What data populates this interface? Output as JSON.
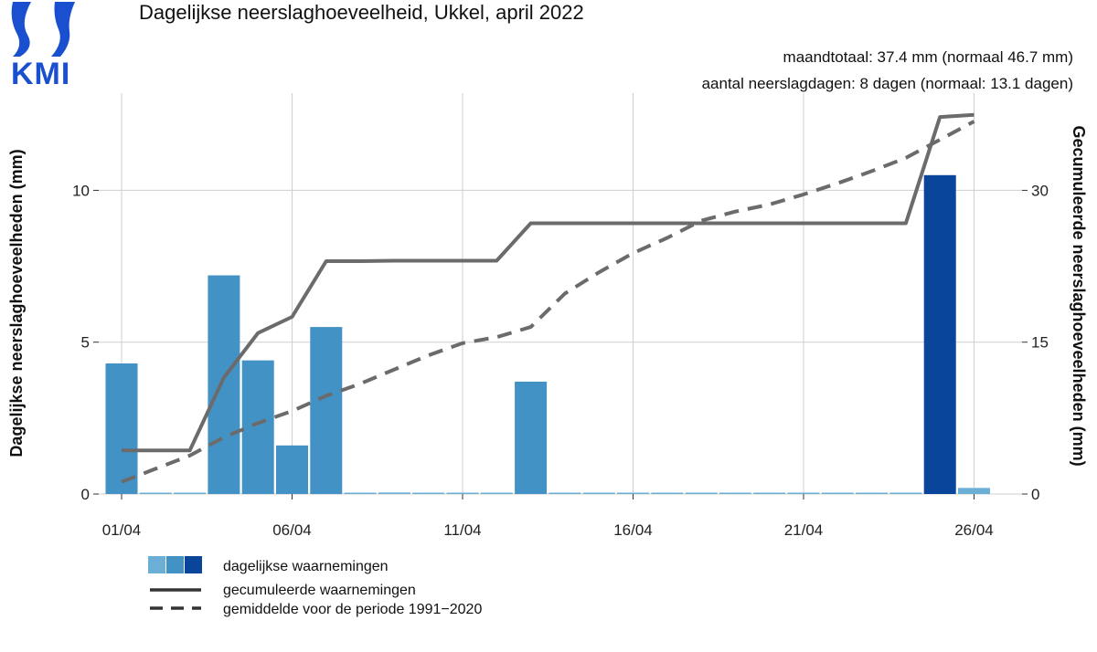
{
  "logo": {
    "text": "KMI",
    "color": "#1a4fd0"
  },
  "chart_data": {
    "type": "bar",
    "title": "Dagelijkse neerslaghoeveelheid, Ukkel, april 2022",
    "stats": [
      "maandtotaal: 37.4 mm (normaal 46.7 mm)",
      "aantal neerslagdagen: 8 dagen (normaal: 13.1 dagen)"
    ],
    "ylabel_left": "Dagelijkse neerslaghoeveelheden (mm)",
    "ylabel_right": "Gecumuleerde neerslaghoeveelheden (mm)",
    "ylim_left": [
      0,
      13.2
    ],
    "ylim_right": [
      0,
      39.6
    ],
    "yticks_left": [
      0,
      5,
      10
    ],
    "yticks_right": [
      0,
      15,
      30
    ],
    "grid": true,
    "days": [
      1,
      2,
      3,
      4,
      5,
      6,
      7,
      8,
      9,
      10,
      11,
      12,
      13,
      14,
      15,
      16,
      17,
      18,
      19,
      20,
      21,
      22,
      23,
      24,
      25,
      26
    ],
    "xticks": [
      {
        "day": 1,
        "label": "01/04"
      },
      {
        "day": 6,
        "label": "06/04"
      },
      {
        "day": 11,
        "label": "11/04"
      },
      {
        "day": 16,
        "label": "16/04"
      },
      {
        "day": 21,
        "label": "21/04"
      },
      {
        "day": 26,
        "label": "26/04"
      }
    ],
    "daily_values": [
      4.3,
      0,
      0,
      7.2,
      4.4,
      1.6,
      5.5,
      0,
      0.05,
      0,
      0,
      0,
      3.7,
      0,
      0,
      0,
      0,
      0,
      0,
      0,
      0,
      0,
      0,
      0,
      10.5,
      0.2
    ],
    "bar_colors": [
      "#4292c6",
      "#6baed6",
      "#6baed6",
      "#4292c6",
      "#4292c6",
      "#4292c6",
      "#4292c6",
      "#6baed6",
      "#6baed6",
      "#6baed6",
      "#6baed6",
      "#6baed6",
      "#4292c6",
      "#6baed6",
      "#6baed6",
      "#6baed6",
      "#6baed6",
      "#6baed6",
      "#6baed6",
      "#6baed6",
      "#6baed6",
      "#6baed6",
      "#6baed6",
      "#6baed6",
      "#08459b",
      "#6baed6"
    ],
    "series": [
      {
        "name": "gecumuleerde waarnemingen",
        "style": "solid",
        "color": "#6b6b6b",
        "points": [
          [
            1,
            4.3
          ],
          [
            2,
            4.3
          ],
          [
            3,
            4.3
          ],
          [
            4,
            11.5
          ],
          [
            5,
            15.9
          ],
          [
            6,
            17.5
          ],
          [
            7,
            23.0
          ],
          [
            8,
            23.0
          ],
          [
            9,
            23.05
          ],
          [
            10,
            23.05
          ],
          [
            11,
            23.05
          ],
          [
            12,
            23.05
          ],
          [
            13,
            26.75
          ],
          [
            14,
            26.75
          ],
          [
            15,
            26.75
          ],
          [
            16,
            26.75
          ],
          [
            17,
            26.75
          ],
          [
            18,
            26.75
          ],
          [
            19,
            26.75
          ],
          [
            20,
            26.75
          ],
          [
            21,
            26.75
          ],
          [
            22,
            26.75
          ],
          [
            23,
            26.75
          ],
          [
            24,
            26.75
          ],
          [
            25,
            37.25
          ],
          [
            26,
            37.45
          ]
        ]
      },
      {
        "name": "gemiddelde voor de periode 1991−2020",
        "style": "dashed",
        "color": "#6b6b6b",
        "points": [
          [
            1,
            1.2
          ],
          [
            2,
            2.5
          ],
          [
            3,
            3.8
          ],
          [
            4,
            5.6
          ],
          [
            5,
            7.0
          ],
          [
            6,
            8.2
          ],
          [
            7,
            9.7
          ],
          [
            8,
            10.9
          ],
          [
            9,
            12.3
          ],
          [
            10,
            13.7
          ],
          [
            11,
            14.9
          ],
          [
            12,
            15.5
          ],
          [
            13,
            16.5
          ],
          [
            14,
            19.8
          ],
          [
            15,
            21.9
          ],
          [
            16,
            23.8
          ],
          [
            17,
            25.3
          ],
          [
            18,
            27.0
          ],
          [
            19,
            27.9
          ],
          [
            20,
            28.6
          ],
          [
            21,
            29.6
          ],
          [
            22,
            30.7
          ],
          [
            23,
            31.9
          ],
          [
            24,
            33.2
          ],
          [
            25,
            35.0
          ],
          [
            26,
            36.8
          ]
        ]
      }
    ],
    "legend": [
      {
        "label": "dagelijkse waarnemingen",
        "kind": "bars",
        "colors": [
          "#6baed6",
          "#4292c6",
          "#08459b"
        ]
      },
      {
        "label": "gecumuleerde waarnemingen",
        "kind": "solid"
      },
      {
        "label": "gemiddelde voor de periode 1991−2020",
        "kind": "dashed"
      }
    ],
    "legend_position": "bottom-left"
  }
}
